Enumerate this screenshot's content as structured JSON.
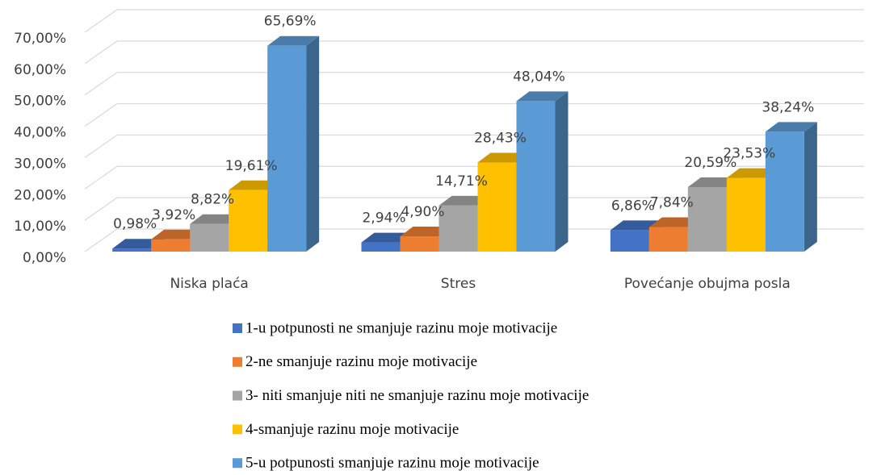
{
  "chart_data": {
    "type": "bar3d",
    "categories": [
      "Niska plaća",
      "Stres",
      "Povećanje obujma posla"
    ],
    "series": [
      {
        "name": "1-u potpunosti ne smanjuje razinu moje motivacije",
        "color": "#4472c4",
        "values": [
          0.98,
          2.94,
          6.86
        ],
        "value_labels": [
          "0,98%",
          "2,94%",
          "6,86%"
        ]
      },
      {
        "name": "2-ne smanjuje razinu moje motivacije",
        "color": "#ed7d31",
        "values": [
          3.92,
          4.9,
          7.84
        ],
        "value_labels": [
          "3,92%",
          "4,90%",
          "7,84%"
        ]
      },
      {
        "name": "3- niti smanjuje niti ne smanjuje razinu moje motivacije",
        "color": "#a5a5a5",
        "values": [
          8.82,
          14.71,
          20.59
        ],
        "value_labels": [
          "8,82%",
          "14,71%",
          "20,59%"
        ]
      },
      {
        "name": "4-smanjuje razinu moje motivacije",
        "color": "#ffc000",
        "values": [
          19.61,
          28.43,
          23.53
        ],
        "value_labels": [
          "19,61%",
          "28,43%",
          "23,53%"
        ]
      },
      {
        "name": "5-u potpunosti smanjuje razinu moje motivacije",
        "color": "#5b9bd5",
        "values": [
          65.69,
          48.04,
          38.24
        ],
        "value_labels": [
          "65,69%",
          "48,04%",
          "38,24%"
        ]
      }
    ],
    "ylim": [
      0,
      70
    ],
    "yticks": [
      {
        "value": 0,
        "label": "0,00%"
      },
      {
        "value": 10,
        "label": "10,00%"
      },
      {
        "value": 20,
        "label": "20,00%"
      },
      {
        "value": 30,
        "label": "30,00%"
      },
      {
        "value": 40,
        "label": "40,00%"
      },
      {
        "value": 50,
        "label": "50,00%"
      },
      {
        "value": 60,
        "label": "60,00%"
      },
      {
        "value": 70,
        "label": "70,00%"
      }
    ],
    "grid": true,
    "legend": "bottom"
  }
}
